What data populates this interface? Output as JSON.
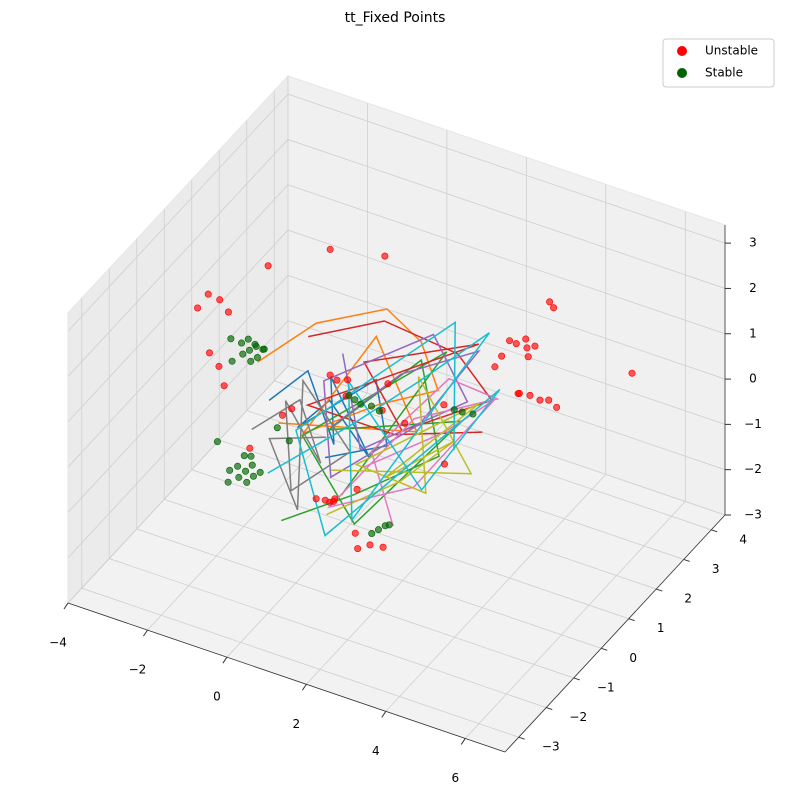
{
  "chart_data": {
    "type": "scatter3d",
    "title": "tt_Fixed Points",
    "grid": true,
    "legend": "upper right",
    "xlim": [
      -4,
      7
    ],
    "ylim": [
      -3.5,
      4.5
    ],
    "zlim": [
      -3,
      3.4
    ],
    "xticks": [
      {
        "value": -4,
        "label": "−4"
      },
      {
        "value": -2,
        "label": "−2"
      },
      0,
      2,
      4,
      6
    ],
    "yticks": [
      {
        "value": -3,
        "label": "−3"
      },
      {
        "value": -2,
        "label": "−2"
      },
      {
        "value": -1,
        "label": "−1"
      },
      0,
      1,
      2,
      3,
      4
    ],
    "zticks": [
      {
        "value": -3,
        "label": "−3"
      },
      {
        "value": -2,
        "label": "−2"
      },
      {
        "value": -1,
        "label": "−1"
      },
      0,
      1,
      2,
      3
    ],
    "lines": [
      {
        "color": "#1f77b4",
        "x": [
          -1.5,
          -0.8,
          0.2,
          -0.5,
          0.9,
          0.3,
          -1.2,
          0.5,
          1.4,
          -0.3
        ],
        "y": [
          0.2,
          0.6,
          0.1,
          1.0,
          0.4,
          -0.2,
          0.8,
          1.2,
          0.3,
          0.5
        ],
        "z": [
          -0.2,
          0.4,
          -0.6,
          0.1,
          -0.9,
          0.6,
          -1.1,
          0.2,
          -0.4,
          -1.3
        ]
      },
      {
        "color": "#ff7f0e",
        "x": [
          -2.0,
          -1.0,
          0.5,
          1.5,
          2.2,
          1.0,
          -0.5,
          0.3,
          1.8,
          -1.4
        ],
        "y": [
          0.5,
          1.2,
          1.6,
          1.4,
          1.0,
          0.6,
          0.0,
          1.5,
          0.8,
          0.4
        ],
        "z": [
          0.3,
          1.0,
          1.5,
          1.2,
          0.6,
          0.2,
          -0.5,
          0.9,
          -0.3,
          -0.8
        ]
      },
      {
        "color": "#2ca02c",
        "x": [
          -0.5,
          1.0,
          2.5,
          1.5,
          0.0,
          2.8,
          1.2,
          -0.8,
          2.0,
          0.6
        ],
        "y": [
          -0.8,
          -0.3,
          0.6,
          1.4,
          0.2,
          1.0,
          -0.6,
          0.4,
          1.6,
          -0.2
        ],
        "z": [
          -1.9,
          -1.2,
          -0.5,
          0.8,
          -0.4,
          0.1,
          -1.6,
          -0.9,
          1.0,
          -1.4
        ]
      },
      {
        "color": "#d62728",
        "x": [
          -1.0,
          0.5,
          2.0,
          3.0,
          1.5,
          0.2,
          2.4,
          -0.6,
          1.1,
          2.9
        ],
        "y": [
          0.9,
          1.5,
          2.0,
          1.8,
          0.7,
          1.2,
          2.2,
          0.3,
          1.0,
          1.6
        ],
        "z": [
          0.9,
          1.3,
          0.7,
          0.1,
          -0.3,
          0.5,
          0.9,
          -0.1,
          -0.7,
          -0.5
        ]
      },
      {
        "color": "#9467bd",
        "x": [
          0.0,
          1.2,
          2.6,
          1.8,
          0.4,
          -0.4,
          1.6,
          2.8,
          0.8,
          -0.2
        ],
        "y": [
          0.3,
          1.1,
          1.9,
          0.9,
          -0.3,
          0.6,
          1.7,
          1.2,
          0.2,
          1.0
        ],
        "z": [
          -0.4,
          0.6,
          1.0,
          -0.2,
          -1.0,
          0.3,
          1.2,
          0.4,
          -0.6,
          0.7
        ]
      },
      {
        "color": "#e377c2",
        "x": [
          1.0,
          2.5,
          3.2,
          2.0,
          0.5,
          1.6,
          3.0,
          2.2,
          0.8,
          1.9
        ],
        "y": [
          0.0,
          0.8,
          1.6,
          0.4,
          -0.5,
          1.0,
          2.0,
          1.4,
          0.6,
          -0.2
        ],
        "z": [
          -0.8,
          -0.1,
          0.3,
          -1.2,
          -1.5,
          -0.2,
          0.0,
          0.6,
          -0.9,
          -1.7
        ]
      },
      {
        "color": "#7f7f7f",
        "x": [
          -1.8,
          -1.0,
          -0.2,
          -1.5,
          -0.6,
          0.4,
          -1.2,
          -0.3,
          -1.7,
          0.0
        ],
        "y": [
          0.0,
          0.6,
          0.2,
          0.8,
          -0.3,
          0.4,
          1.0,
          -0.5,
          0.5,
          0.1
        ],
        "z": [
          -0.8,
          -0.3,
          -1.2,
          -0.6,
          -1.6,
          -0.9,
          -0.2,
          -1.8,
          -1.3,
          -0.5
        ]
      },
      {
        "color": "#bcbd22",
        "x": [
          0.5,
          1.8,
          2.6,
          1.2,
          2.9,
          0.9,
          2.1,
          1.5,
          3.1,
          0.2
        ],
        "y": [
          -0.6,
          0.2,
          1.0,
          0.5,
          1.5,
          -0.1,
          0.7,
          1.3,
          0.9,
          0.0
        ],
        "z": [
          -1.6,
          -1.0,
          -0.4,
          -1.3,
          0.2,
          -0.7,
          -1.5,
          0.5,
          -0.9,
          -1.1
        ]
      },
      {
        "color": "#17becf",
        "x": [
          -1.6,
          0.2,
          1.6,
          2.8,
          1.0,
          -0.4,
          2.2,
          3.2,
          0.6,
          -1.1,
          1.8,
          2.6
        ],
        "y": [
          0.3,
          0.8,
          1.2,
          2.0,
          -0.4,
          1.5,
          0.4,
          1.8,
          -0.8,
          0.6,
          2.2,
          1.0
        ],
        "z": [
          -1.9,
          -0.6,
          0.5,
          1.4,
          -1.7,
          -0.3,
          -1.2,
          0.4,
          -1.9,
          -1.0,
          1.2,
          -0.6
        ]
      }
    ],
    "series": [
      {
        "name": "Unstable",
        "color": "#ff0000",
        "x": [
          2.3,
          2.5,
          2.6,
          2.2,
          2.4,
          2.0,
          2.7,
          1.9,
          3.0,
          3.1,
          4.66,
          3.45,
          3.2,
          3.6,
          3.0,
          3.8,
          2.9,
          -2.95,
          -3.1,
          -3.3,
          -2.8,
          -3.0,
          -2.9,
          -2.7,
          -1.8,
          0.1,
          -1.0,
          -0.17,
          0.0,
          0.2,
          0.3,
          1.0,
          1.5,
          -1.0,
          -1.3,
          0.8,
          2.0,
          0.26,
          0.4,
          0.1,
          0.5,
          0.3,
          1.94,
          1.7,
          2.2,
          1.5,
          2.5,
          1.2,
          -1.5
        ],
        "y": [
          3.7,
          3.8,
          3.7,
          3.6,
          3.9,
          3.6,
          3.8,
          3.5,
          3.9,
          3.9,
          4.5,
          2.9,
          2.9,
          3.0,
          2.8,
          3.0,
          2.9,
          0.5,
          0.3,
          0.2,
          0.6,
          0.2,
          0.4,
          0.3,
          0.6,
          2.1,
          1.7,
          0.5,
          0.5,
          0.6,
          0.4,
          0.7,
          0.8,
          0.3,
          0.4,
          1.2,
          1.5,
          -0.3,
          -0.2,
          -0.4,
          -0.3,
          -0.2,
          -1.1,
          -1.2,
          -1.0,
          -1.0,
          0.8,
          -0.5,
          -0.5
        ],
        "z": [
          -0.1,
          -0.2,
          -0.3,
          0.0,
          -0.1,
          -0.4,
          -0.1,
          -0.6,
          0.9,
          0.8,
          -0.57,
          -0.48,
          -0.45,
          -0.5,
          -0.4,
          -0.6,
          -0.5,
          1.39,
          1.6,
          1.3,
          1.1,
          0.4,
          0.0,
          -0.3,
          2.42,
          2.22,
          2.3,
          0.56,
          0.5,
          0.5,
          0.3,
          0.0,
          -0.2,
          -0.3,
          -0.6,
          0.2,
          -0.1,
          -1.55,
          -1.6,
          -1.5,
          -1.45,
          -1.65,
          -1.51,
          -1.6,
          -1.55,
          -1.45,
          -0.8,
          -0.9,
          -0.8
        ]
      },
      {
        "name": "Stable",
        "color": "#006400",
        "x": [
          -2.2,
          -2.1,
          -2.3,
          -2.0,
          -2.4,
          -2.2,
          -1.9,
          -2.5,
          -2.6,
          -2.1,
          -2.3,
          -2.0,
          -2.3,
          -2.2,
          -2.4,
          -2.1,
          -2.5,
          -2.3,
          -2.0,
          -2.6,
          -2.2,
          -2.4,
          -2.7,
          1.6,
          1.7,
          1.5,
          1.8,
          0.45,
          0.6,
          0.8,
          0.3,
          1.0,
          2.4,
          2.6,
          2.8,
          -1.5,
          -1.2,
          -2.8
        ],
        "y": [
          0.5,
          0.6,
          0.4,
          0.5,
          0.5,
          0.7,
          0.6,
          0.3,
          0.4,
          0.4,
          0.6,
          0.7,
          0.5,
          0.6,
          0.4,
          0.5,
          0.5,
          0.7,
          0.6,
          0.3,
          0.4,
          0.6,
          0.5,
          -0.3,
          -0.2,
          -0.4,
          -0.2,
          0.5,
          0.5,
          0.6,
          0.5,
          0.6,
          1.3,
          1.3,
          1.4,
          0.5,
          0.5,
          0.2
        ],
        "z": [
          0.5,
          0.55,
          0.45,
          0.4,
          0.6,
          0.5,
          0.55,
          0.3,
          0.7,
          0.35,
          0.65,
          0.45,
          -2.2,
          -2.1,
          -2.3,
          -2.25,
          -2.15,
          -2.0,
          -2.2,
          -2.4,
          -2.35,
          -1.95,
          -2.3,
          -1.8,
          -1.75,
          -1.85,
          -1.7,
          0.2,
          0.15,
          0.1,
          0.25,
          0.05,
          0.04,
          0.05,
          0.0,
          -1.0,
          -1.2,
          -1.5
        ]
      }
    ]
  }
}
